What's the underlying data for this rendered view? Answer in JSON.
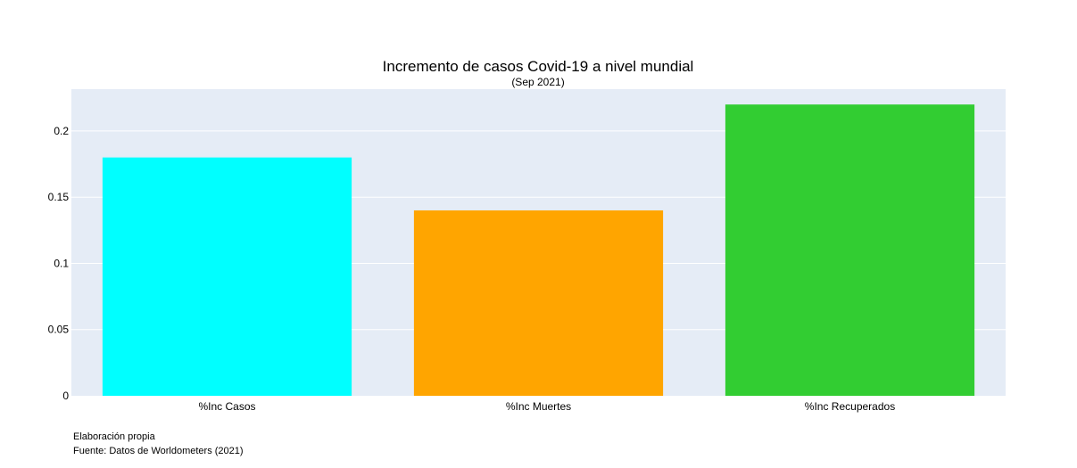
{
  "chart_data": {
    "type": "bar",
    "title": "Incremento de casos Covid-19 a nivel mundial",
    "subtitle": "(Sep 2021)",
    "categories": [
      "%Inc Casos",
      "%Inc Muertes",
      "%Inc Recuperados"
    ],
    "values": [
      0.18,
      0.14,
      0.22
    ],
    "colors": [
      "#00ffff",
      "#ffa500",
      "#32cd32"
    ],
    "xlabel": "",
    "ylabel": "",
    "ylim": [
      0,
      0.2316
    ],
    "yticks": [
      0,
      0.05,
      0.1,
      0.15,
      0.2
    ],
    "ytick_labels": [
      "0",
      "0.05",
      "0.1",
      "0.15",
      "0.2"
    ],
    "grid": true,
    "legend": "none"
  },
  "annotations": {
    "line1": "Elaboración propia",
    "line2": "Fuente: Datos de Worldometers (2021)"
  },
  "colors": {
    "plot_bg": "#e5ecf6",
    "grid": "#ffffff"
  }
}
